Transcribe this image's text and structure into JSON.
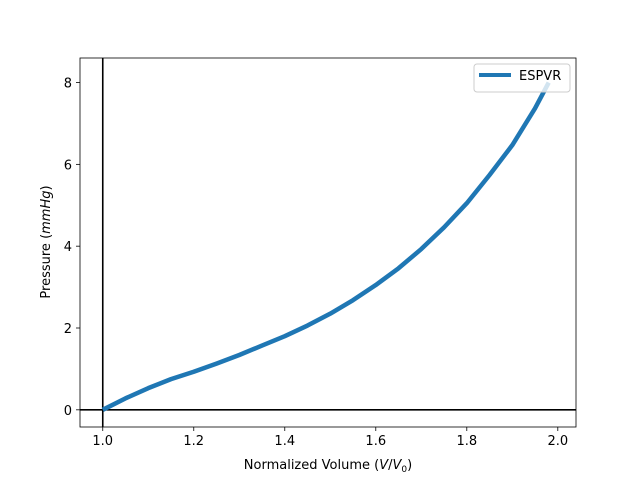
{
  "chart_data": {
    "type": "line",
    "title": "",
    "xlabel": {
      "prefix": "Normalized Volume (",
      "italic": "V",
      "slash": "/",
      "italic2": "V",
      "sub": "0",
      "suffix": ")"
    },
    "ylabel": {
      "prefix": "Pressure (",
      "italic": "mmHg",
      "suffix": ")"
    },
    "xlim": [
      0.95,
      2.04
    ],
    "ylim": [
      -0.42,
      8.6
    ],
    "xticks": [
      1.0,
      1.2,
      1.4,
      1.6,
      1.8,
      2.0
    ],
    "xtick_labels": [
      "1.0",
      "1.2",
      "1.4",
      "1.6",
      "1.8",
      "2.0"
    ],
    "yticks": [
      0,
      2,
      4,
      6,
      8
    ],
    "ytick_labels": [
      "0",
      "2",
      "4",
      "6",
      "8"
    ],
    "reference_lines": {
      "vertical_x": 1.0,
      "horizontal_y": 0
    },
    "legend": {
      "placement": "top-right",
      "entries": [
        "ESPVR"
      ]
    },
    "grid": false,
    "series": [
      {
        "name": "ESPVR",
        "color": "#1f77b4",
        "x": [
          1.0,
          1.05,
          1.1,
          1.15,
          1.2,
          1.25,
          1.3,
          1.35,
          1.4,
          1.45,
          1.5,
          1.55,
          1.6,
          1.65,
          1.7,
          1.75,
          1.8,
          1.85,
          1.9,
          1.95,
          1.98
        ],
        "y": [
          0.0,
          0.28,
          0.53,
          0.75,
          0.93,
          1.13,
          1.34,
          1.57,
          1.8,
          2.06,
          2.35,
          2.68,
          3.05,
          3.46,
          3.93,
          4.46,
          5.05,
          5.74,
          6.47,
          7.37,
          8.0
        ]
      }
    ]
  }
}
